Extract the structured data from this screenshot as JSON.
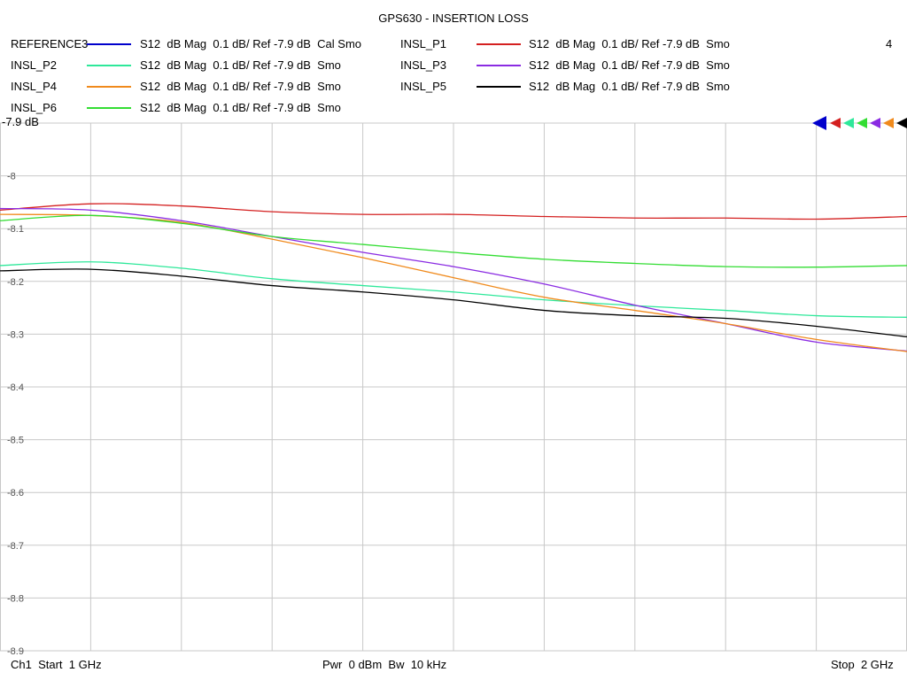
{
  "window": {
    "title": "GPS630 - INSERTION LOSS",
    "marker_count": "4",
    "ref_label": "-7.9 dB"
  },
  "legend": [
    {
      "name": "REFERENCE3",
      "desc": "S12  dB Mag  0.1 dB/ Ref -7.9 dB  Cal Smo",
      "color": "#0000cc"
    },
    {
      "name": "INSL_P1",
      "desc": "S12  dB Mag  0.1 dB/ Ref -7.9 dB  Smo",
      "color": "#d42020"
    },
    {
      "name": "INSL_P2",
      "desc": "S12  dB Mag  0.1 dB/ Ref -7.9 dB  Smo",
      "color": "#2ee89a"
    },
    {
      "name": "INSL_P3",
      "desc": "S12  dB Mag  0.1 dB/ Ref -7.9 dB  Smo",
      "color": "#8a2be2"
    },
    {
      "name": "INSL_P4",
      "desc": "S12  dB Mag  0.1 dB/ Ref -7.9 dB  Smo",
      "color": "#f08a1c"
    },
    {
      "name": "INSL_P5",
      "desc": "S12  dB Mag  0.1 dB/ Ref -7.9 dB  Smo",
      "color": "#000000"
    },
    {
      "name": "INSL_P6",
      "desc": "S12  dB Mag  0.1 dB/ Ref -7.9 dB  Smo",
      "color": "#33dd33"
    }
  ],
  "footer": {
    "start": "Ch1  Start  1 GHz",
    "center": "Pwr  0 dBm  Bw  10 kHz",
    "stop": "Stop  2 GHz"
  },
  "chart_data": {
    "type": "line",
    "title": "GPS630 - INSERTION LOSS",
    "xlim": [
      1.0,
      2.0
    ],
    "ylim": [
      -8.9,
      -7.9
    ],
    "y_ticks": [
      "-8",
      "-8.1",
      "-8.2",
      "-8.3",
      "-8.4",
      "-8.5",
      "-8.6",
      "-8.7",
      "-8.8",
      "-8.9"
    ],
    "y_tick_values": [
      -8.0,
      -8.1,
      -8.2,
      -8.3,
      -8.4,
      -8.5,
      -8.6,
      -8.7,
      -8.8,
      -8.9
    ],
    "grid": true,
    "x": [
      1.0,
      1.1,
      1.2,
      1.3,
      1.4,
      1.5,
      1.6,
      1.7,
      1.8,
      1.9,
      2.0
    ],
    "series": [
      {
        "name": "INSL_P1",
        "color": "#d42020",
        "values": [
          -8.065,
          -8.053,
          -8.057,
          -8.068,
          -8.073,
          -8.073,
          -8.077,
          -8.08,
          -8.08,
          -8.082,
          -8.077
        ]
      },
      {
        "name": "INSL_P2",
        "color": "#2ee89a",
        "values": [
          -8.17,
          -8.163,
          -8.175,
          -8.195,
          -8.208,
          -8.22,
          -8.235,
          -8.246,
          -8.255,
          -8.265,
          -8.268
        ]
      },
      {
        "name": "INSL_P3",
        "color": "#8a2be2",
        "values": [
          -8.062,
          -8.065,
          -8.085,
          -8.115,
          -8.145,
          -8.172,
          -8.205,
          -8.245,
          -8.28,
          -8.315,
          -8.332
        ]
      },
      {
        "name": "INSL_P4",
        "color": "#f08a1c",
        "values": [
          -8.073,
          -8.075,
          -8.088,
          -8.12,
          -8.155,
          -8.193,
          -8.23,
          -8.255,
          -8.28,
          -8.31,
          -8.333
        ]
      },
      {
        "name": "INSL_P5",
        "color": "#000000",
        "values": [
          -8.18,
          -8.177,
          -8.19,
          -8.208,
          -8.22,
          -8.235,
          -8.255,
          -8.265,
          -8.27,
          -8.285,
          -8.305
        ]
      },
      {
        "name": "INSL_P6",
        "color": "#33dd33",
        "values": [
          -8.085,
          -8.075,
          -8.09,
          -8.115,
          -8.13,
          -8.145,
          -8.158,
          -8.166,
          -8.172,
          -8.173,
          -8.17
        ]
      }
    ]
  }
}
